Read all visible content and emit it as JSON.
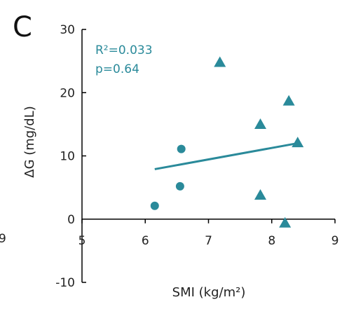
{
  "panel_label": "C",
  "left_edge_fragment": "9",
  "accent_color": "#2a8a9a",
  "chart_data": {
    "type": "scatter",
    "xlabel": "SMI (kg/m²)",
    "ylabel": "ΔG (mg/dL)",
    "xlim": [
      5,
      9
    ],
    "ylim": [
      -10,
      30
    ],
    "x_ticks": [
      "5",
      "6",
      "7",
      "8",
      "9"
    ],
    "y_ticks": [
      "30",
      "20",
      "10",
      "0",
      "-10"
    ],
    "grid": false,
    "annotations": [
      "R²=0.033",
      "p=0.64"
    ],
    "series": [
      {
        "marker": "circle",
        "color": "#2a8a9a",
        "points": [
          {
            "x": 6.15,
            "y": 2.1
          },
          {
            "x": 6.57,
            "y": 11.1
          },
          {
            "x": 6.55,
            "y": 5.2
          }
        ]
      },
      {
        "marker": "triangle",
        "color": "#2a8a9a",
        "points": [
          {
            "x": 7.18,
            "y": 24.7
          },
          {
            "x": 8.27,
            "y": 18.6
          },
          {
            "x": 7.82,
            "y": 14.9
          },
          {
            "x": 8.41,
            "y": 12.0
          },
          {
            "x": 7.82,
            "y": 3.7
          },
          {
            "x": 8.21,
            "y": -0.7
          }
        ]
      }
    ],
    "trendline": {
      "x": [
        6.15,
        8.41
      ],
      "y": [
        7.9,
        12.0
      ]
    }
  }
}
